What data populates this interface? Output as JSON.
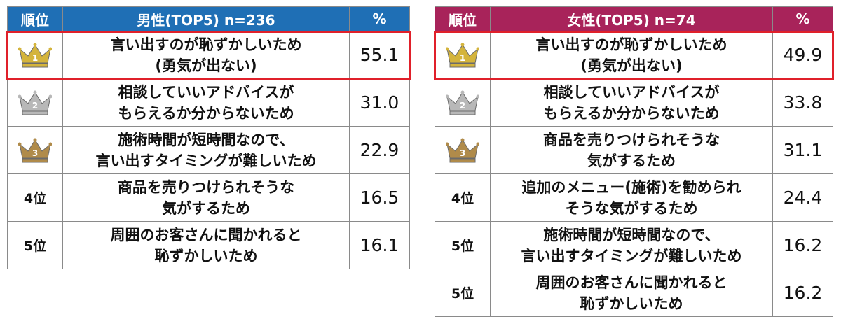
{
  "chart_data": [
    {
      "type": "table",
      "title": "男性(TOP5) n=236",
      "columns": [
        "順位",
        "男性(TOP5) n=236",
        "%"
      ],
      "rows": [
        {
          "rank": 1,
          "rank_label": "",
          "crown": "gold-crown-icon",
          "reason": "言い出すのが恥ずかしいため\n(勇気が出ない)",
          "value": "55.1",
          "highlighted": true
        },
        {
          "rank": 2,
          "rank_label": "",
          "crown": "silver-crown-icon",
          "reason": "相談していいアドバイスが\nもらえるか分からないため",
          "value": "31.0",
          "highlighted": false
        },
        {
          "rank": 3,
          "rank_label": "",
          "crown": "bronze-crown-icon",
          "reason": "施術時間が短時間なので、\n言い出すタイミングが難しいため",
          "value": "22.9",
          "highlighted": false
        },
        {
          "rank": 4,
          "rank_label": "4位",
          "crown": "",
          "reason": "商品を売りつけられそうな\n気がするため",
          "value": "16.5",
          "highlighted": false
        },
        {
          "rank": 5,
          "rank_label": "5位",
          "crown": "",
          "reason": "周囲のお客さんに聞かれると\n恥ずかしいため",
          "value": "16.1",
          "highlighted": false
        }
      ]
    },
    {
      "type": "table",
      "title": "女性(TOP5) n=74",
      "columns": [
        "順位",
        "女性(TOP5) n=74",
        "%"
      ],
      "rows": [
        {
          "rank": 1,
          "rank_label": "",
          "crown": "gold-crown-icon",
          "reason": "言い出すのが恥ずかしいため\n(勇気が出ない)",
          "value": "49.9",
          "highlighted": true
        },
        {
          "rank": 2,
          "rank_label": "",
          "crown": "silver-crown-icon",
          "reason": "相談していいアドバイスが\nもらえるか分からないため",
          "value": "33.8",
          "highlighted": false
        },
        {
          "rank": 3,
          "rank_label": "",
          "crown": "bronze-crown-icon",
          "reason": "商品を売りつけられそうな\n気がするため",
          "value": "31.1",
          "highlighted": false
        },
        {
          "rank": 4,
          "rank_label": "4位",
          "crown": "",
          "reason": "追加のメニュー(施術)を勧められ\nそうな気がするため",
          "value": "24.4",
          "highlighted": false
        },
        {
          "rank": 5,
          "rank_label": "5位",
          "crown": "",
          "reason": "施術時間が短時間なので、\n言い出すタイミングが難しいため",
          "value": "16.2",
          "highlighted": false
        },
        {
          "rank": 5,
          "rank_label": "5位",
          "crown": "",
          "reason": "周囲のお客さんに聞かれると\n恥ずかしいため",
          "value": "16.2",
          "highlighted": false
        }
      ]
    }
  ],
  "colors": {
    "men_header": "#1f6fb5",
    "women_header": "#a8235a",
    "highlight_border": "#e0202a",
    "gold": "#d4b43c",
    "silver": "#b8b8b8",
    "bronze": "#b08b4a"
  }
}
